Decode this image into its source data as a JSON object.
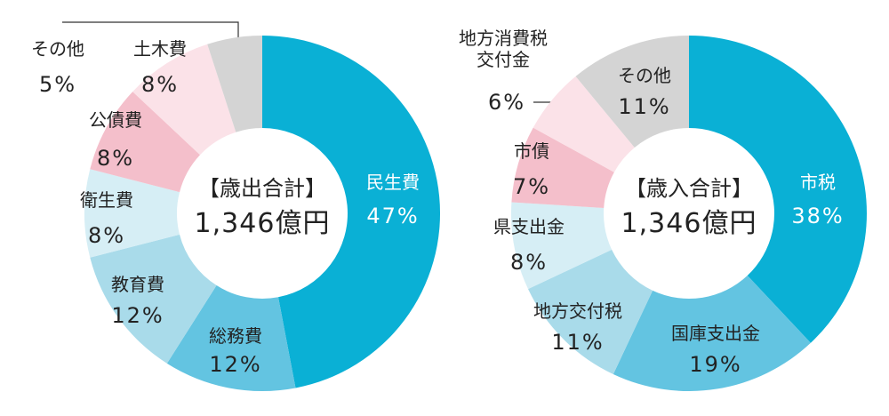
{
  "chart_data": [
    {
      "type": "pie",
      "center_title": "【歳出合計】",
      "center_value": "1,346億円",
      "categories": [
        "民生費",
        "総務費",
        "教育費",
        "衛生費",
        "公債費",
        "土木費",
        "その他"
      ],
      "values": [
        47,
        12,
        12,
        8,
        8,
        8,
        5
      ],
      "value_labels": [
        "47%",
        "12%",
        "12%",
        "8%",
        "8%",
        "8%",
        "5%"
      ],
      "colors": [
        "#0ab0d5",
        "#63c4e1",
        "#a9dbea",
        "#d6eef5",
        "#f4bfcb",
        "#fbe2e8",
        "#d4d4d4"
      ]
    },
    {
      "type": "pie",
      "center_title": "【歳入合計】",
      "center_value": "1,346億円",
      "categories": [
        "市税",
        "国庫支出金",
        "地方交付税",
        "県支出金",
        "市債",
        "地方消費税交付金",
        "その他"
      ],
      "values": [
        38,
        19,
        11,
        8,
        7,
        6,
        11
      ],
      "value_labels": [
        "38%",
        "19%",
        "11%",
        "8%",
        "7%",
        "6%",
        "11%"
      ],
      "colors": [
        "#0ab0d5",
        "#63c4e1",
        "#a9dbea",
        "#d6eef5",
        "#f4bfcb",
        "#fbe2e8",
        "#d4d4d4"
      ]
    }
  ]
}
